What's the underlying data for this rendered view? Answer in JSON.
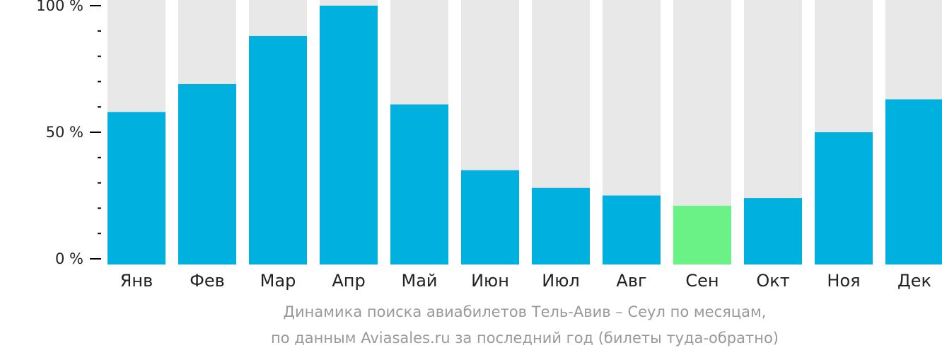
{
  "chart_data": {
    "type": "bar",
    "categories": [
      "Янв",
      "Фев",
      "Мар",
      "Апр",
      "Май",
      "Июн",
      "Июл",
      "Авг",
      "Сен",
      "Окт",
      "Ноя",
      "Дек"
    ],
    "values": [
      58,
      69,
      88,
      100,
      61,
      35,
      28,
      25,
      21,
      24,
      50,
      63
    ],
    "highlight_index": 8,
    "ylim": [
      0,
      100
    ],
    "yticks": [
      "0 %",
      "50 %",
      "100 %"
    ],
    "grid": false,
    "colors": {
      "bar": "#00b0de",
      "highlight": "#6bf286",
      "background_bar": "#e8e8e9",
      "axis": "#000000"
    }
  },
  "caption": {
    "line1": "Динамика поиска авиабилетов Тель-Авив – Сеул по месяцам,",
    "line2": "по данным Aviasales.ru за последний год (билеты туда-обратно)"
  }
}
